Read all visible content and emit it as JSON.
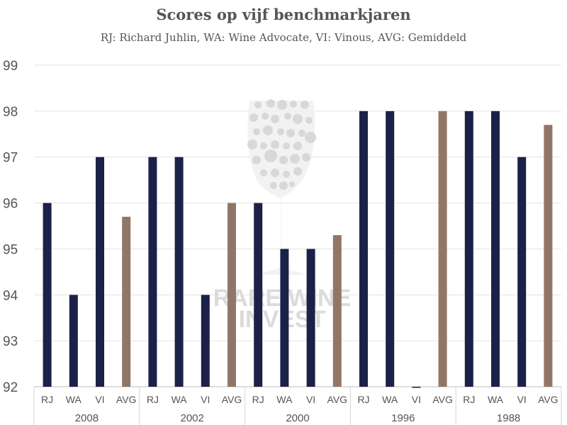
{
  "chart_data": {
    "type": "bar",
    "title": "Scores op vijf benchmarkjaren",
    "subtitle": "RJ: Richard Juhlin, WA: Wine Advocate, VI: Vinous, AVG: Gemiddeld",
    "ylim": [
      92,
      99
    ],
    "yticks": [
      "92",
      "93",
      "94",
      "95",
      "96",
      "97",
      "98",
      "99"
    ],
    "grid": true,
    "groups": [
      {
        "label": "2008",
        "bars": [
          {
            "label": "RJ",
            "value": 96
          },
          {
            "label": "WA",
            "value": 94
          },
          {
            "label": "VI",
            "value": 97
          },
          {
            "label": "AVG",
            "value": 95.7
          }
        ]
      },
      {
        "label": "2002",
        "bars": [
          {
            "label": "RJ",
            "value": 97
          },
          {
            "label": "WA",
            "value": 97
          },
          {
            "label": "VI",
            "value": 94
          },
          {
            "label": "AVG",
            "value": 96
          }
        ]
      },
      {
        "label": "2000",
        "bars": [
          {
            "label": "RJ",
            "value": 96
          },
          {
            "label": "WA",
            "value": 95
          },
          {
            "label": "VI",
            "value": 95
          },
          {
            "label": "AVG",
            "value": 95.3
          }
        ]
      },
      {
        "label": "1996",
        "bars": [
          {
            "label": "RJ",
            "value": 98
          },
          {
            "label": "WA",
            "value": 98
          },
          {
            "label": "VI",
            "value": null
          },
          {
            "label": "AVG",
            "value": 98
          }
        ]
      },
      {
        "label": "1988",
        "bars": [
          {
            "label": "RJ",
            "value": 98
          },
          {
            "label": "WA",
            "value": 98
          },
          {
            "label": "VI",
            "value": 97
          },
          {
            "label": "AVG",
            "value": 97.7
          }
        ]
      }
    ],
    "colors": {
      "score": "#1c2149",
      "average": "#917668"
    }
  },
  "watermark": {
    "line1": "RARE WINE",
    "line2": "INVEST"
  }
}
